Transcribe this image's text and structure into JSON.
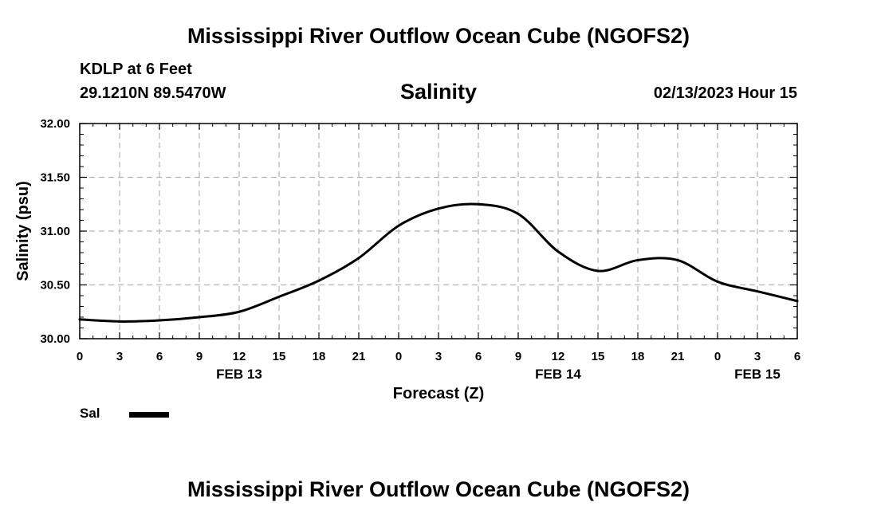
{
  "page": {
    "title": "Mississippi River Outflow Ocean Cube (NGOFS2)",
    "station": "KDLP at 6 Feet",
    "coords": "29.1210N  89.5470W",
    "plot_title": "Salinity",
    "timestamp": "02/13/2023 Hour 15",
    "footer_title": "Mississippi River Outflow Ocean Cube (NGOFS2)"
  },
  "chart_data": {
    "type": "line",
    "title": "Salinity",
    "xlabel": "Forecast (Z)",
    "ylabel": "Salinity (psu)",
    "x_unit": "hours from 2023-02-13 00Z",
    "xlim": [
      0,
      54
    ],
    "ylim": [
      30.0,
      32.0
    ],
    "grid": true,
    "y_ticks": [
      "30.00",
      "30.50",
      "31.00",
      "31.50",
      "32.00"
    ],
    "y_tick_values": [
      30.0,
      30.5,
      31.0,
      31.5,
      32.0
    ],
    "x_tick_labels": [
      "0",
      "3",
      "6",
      "9",
      "12",
      "15",
      "18",
      "21",
      "0",
      "3",
      "6",
      "9",
      "12",
      "15",
      "18",
      "21",
      "0",
      "3",
      "6"
    ],
    "date_labels": [
      {
        "label": "FEB 13",
        "hour": 12
      },
      {
        "label": "FEB 14",
        "hour": 36
      },
      {
        "label": "FEB 15",
        "hour": 51
      }
    ],
    "series": [
      {
        "name": "Sal",
        "color": "#000000",
        "x": [
          0,
          3,
          6,
          9,
          12,
          15,
          18,
          21,
          24,
          27,
          30,
          33,
          36,
          39,
          42,
          45,
          48,
          51,
          54
        ],
        "y": [
          30.18,
          30.16,
          30.17,
          30.2,
          30.25,
          30.39,
          30.54,
          30.75,
          31.05,
          31.21,
          31.25,
          31.16,
          30.81,
          30.63,
          30.73,
          30.73,
          30.53,
          30.44,
          30.35
        ]
      }
    ],
    "legend": {
      "position": "bottom-left",
      "label": "Sal"
    }
  }
}
